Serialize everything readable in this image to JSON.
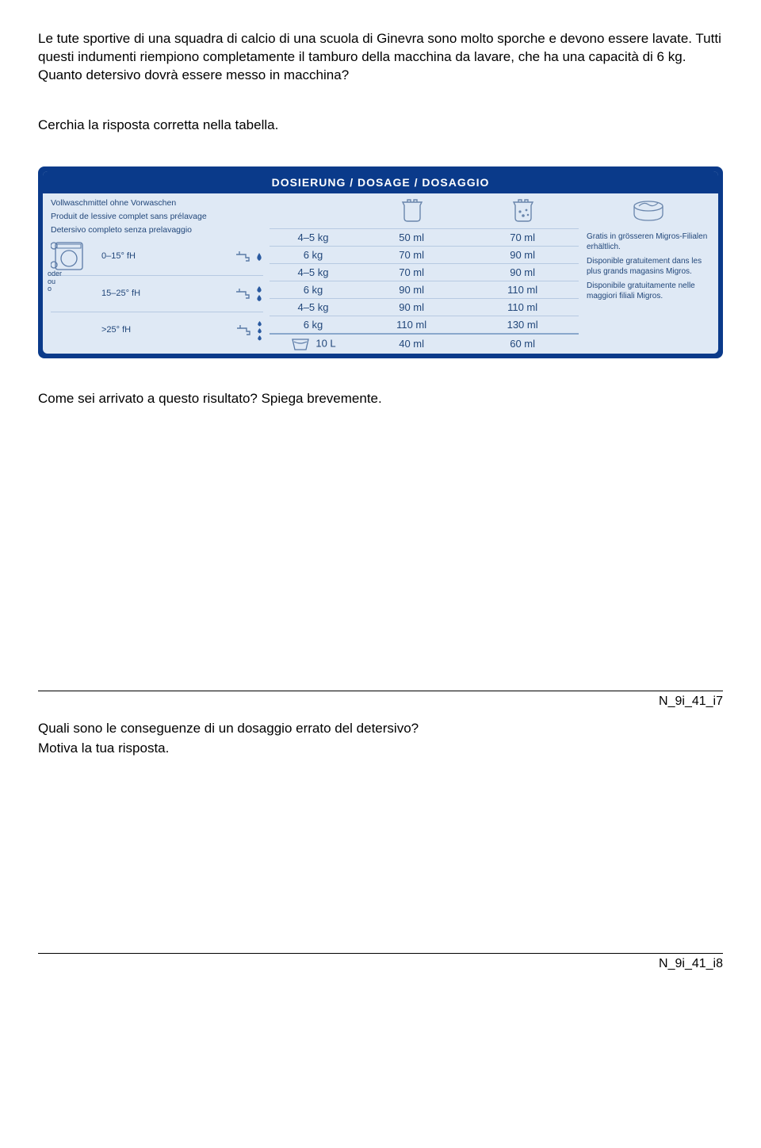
{
  "intro": {
    "p1": "Le tute sportive di una squadra di calcio di una scuola di Ginevra sono molto sporche e devono essere lavate. Tutti questi indumenti riempiono completamente il tamburo della macchina da lavare, che ha una capacità di 6 kg. Quanto detersivo dovrà essere messo in macchina?",
    "p2": "Cerchia la risposta corretta nella tabella."
  },
  "panel": {
    "title": "DOSIERUNG / DOSAGE / DOSAGGIO",
    "left_desc": [
      "Vollwaschmittel ohne Vorwaschen",
      "Produit de lessive complet sans prélavage",
      "Detersivo completo senza prelavaggio"
    ],
    "bands": [
      {
        "label": "0–15° fH",
        "drops": 1
      },
      {
        "label": "15–25° fH",
        "drops": 2
      },
      {
        "label": ">25° fH",
        "drops": 3
      }
    ],
    "oder": [
      "oder",
      "ou",
      "o"
    ],
    "table": {
      "rows": [
        {
          "load": "4–5 kg",
          "light": "50 ml",
          "heavy": "70 ml"
        },
        {
          "load": "6 kg",
          "light": "70 ml",
          "heavy": "90 ml"
        },
        {
          "load": "4–5 kg",
          "light": "70 ml",
          "heavy": "90 ml"
        },
        {
          "load": "6 kg",
          "light": "90 ml",
          "heavy": "110 ml"
        },
        {
          "load": "4–5 kg",
          "light": "90 ml",
          "heavy": "110 ml"
        },
        {
          "load": "6 kg",
          "light": "110 ml",
          "heavy": "130 ml"
        }
      ],
      "bucket": {
        "load": "10 L",
        "light": "40 ml",
        "heavy": "60 ml"
      }
    },
    "right": [
      "Gratis in grösseren Migros-Filialen erhältlich.",
      "Disponible gratuitement dans les plus grands magasins Migros.",
      "Disponibile gratuitamente nelle maggiori filiali Migros."
    ]
  },
  "q1": {
    "text": "Come sei arrivato a questo risultato? Spiega brevemente.",
    "id": "N_9i_41_i7"
  },
  "q2": {
    "text": "Quali sono le conseguenze di un dosaggio errato del detersivo?",
    "text2": "Motiva la tua risposta.",
    "id": "N_9i_41_i8"
  },
  "colors": {
    "panel_bg": "#0a3a8a",
    "panel_inner": "#dfe9f5",
    "line": "#b7cae2",
    "ink": "#22477a"
  }
}
